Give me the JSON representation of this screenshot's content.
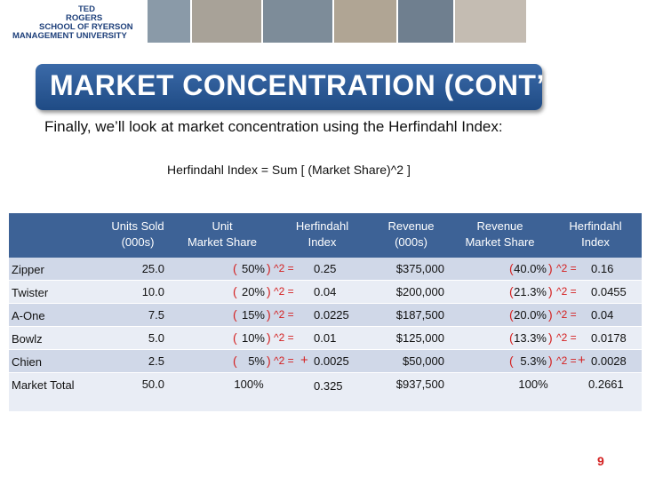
{
  "logo": {
    "line1": "TED",
    "line2": "ROGERS",
    "line3": "SCHOOL OF",
    "line4": "MANAGEMENT",
    "school1": "RYERSON",
    "school2": "UNIVERSITY"
  },
  "title": "MARKET CONCENTRATION (CONT’D)",
  "intro": "Finally, we’ll look at market concentration using the Herfindahl Index:",
  "formula": "Herfindahl Index  = Sum [ (Market Share)^2 ]",
  "table": {
    "header": [
      [
        "Units Sold",
        "(000s)"
      ],
      [
        "Unit",
        "Market Share"
      ],
      [
        "Herfindahl",
        "Index"
      ],
      [
        "Revenue",
        "(000s)"
      ],
      [
        "Revenue",
        "Market Share"
      ],
      [
        "Herfindahl",
        "Index"
      ]
    ],
    "rows": [
      [
        "Zipper",
        "25.0",
        "50%",
        "0.25",
        "$375,000",
        "40.0%",
        "0.16"
      ],
      [
        "Twister",
        "10.0",
        "20%",
        "0.04",
        "$200,000",
        "21.3%",
        "0.0455"
      ],
      [
        "A-One",
        "7.5",
        "15%",
        "0.0225",
        "$187,500",
        "20.0%",
        "0.04"
      ],
      [
        "Bowlz",
        "5.0",
        "10%",
        "0.01",
        "$125,000",
        "13.3%",
        "0.0178"
      ],
      [
        "Chien",
        "2.5",
        "5%",
        "0.0025",
        "$50,000",
        "5.3%",
        "0.0028"
      ],
      [
        "Market Total",
        "50.0",
        "100%",
        "0.325",
        "$937,500",
        "100%",
        "0.2661"
      ]
    ]
  },
  "annotations": {
    "open": "(",
    "close": ")",
    "power": "^2 =",
    "plus": "+"
  },
  "page_number": "9"
}
